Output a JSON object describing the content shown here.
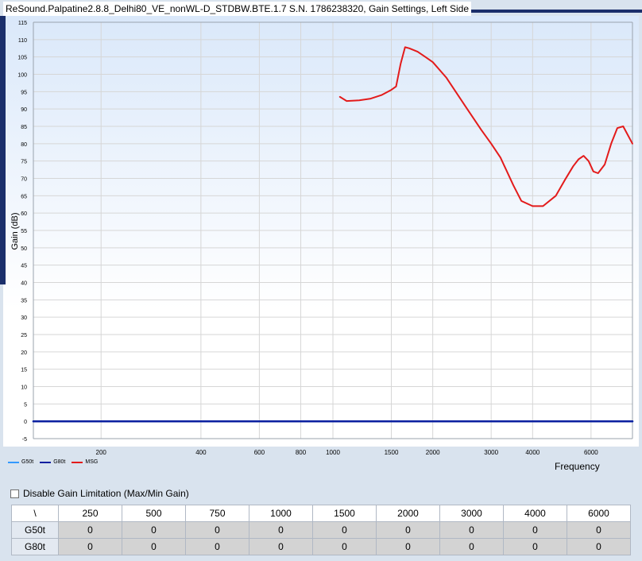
{
  "window": {
    "title": "ReSound.Palpatine2.8.8_Delhi80_VE_nonWL-D_STDBW.BTE.1.7 S.N. 1786238320, Gain Settings, Left Side"
  },
  "chart_data": {
    "type": "line",
    "title": "",
    "xlabel": "Frequency",
    "ylabel": "Gain (dB)",
    "x_scale": "log",
    "xlim": [
      125,
      8000
    ],
    "ylim": [
      -5,
      115
    ],
    "grid": true,
    "legend_position": "bottom-left",
    "x_ticks": [
      200,
      400,
      600,
      800,
      1000,
      1500,
      2000,
      3000,
      4000,
      6000
    ],
    "y_ticks": [
      -5,
      0,
      5,
      10,
      15,
      20,
      25,
      30,
      35,
      40,
      45,
      50,
      55,
      60,
      65,
      70,
      75,
      80,
      85,
      90,
      95,
      100,
      105,
      110,
      115
    ],
    "series": [
      {
        "name": "G50t",
        "color": "#3399ff",
        "x": [
          125,
          8000
        ],
        "y": [
          0,
          0
        ]
      },
      {
        "name": "G80t",
        "color": "#0a1fa0",
        "x": [
          125,
          8000
        ],
        "y": [
          0,
          0
        ]
      },
      {
        "name": "MSG",
        "color": "#e31b1b",
        "x": [
          1050,
          1100,
          1200,
          1300,
          1400,
          1500,
          1550,
          1600,
          1650,
          1700,
          1800,
          1900,
          2000,
          2200,
          2500,
          2800,
          3000,
          3200,
          3500,
          3700,
          4000,
          4300,
          4700,
          5000,
          5300,
          5500,
          5700,
          5900,
          6100,
          6300,
          6600,
          6900,
          7200,
          7500,
          8000
        ],
        "y": [
          93.5,
          92.3,
          92.5,
          93,
          94,
          95.5,
          96.5,
          103,
          107.8,
          107.5,
          106.5,
          105,
          103.5,
          99,
          91,
          84,
          80,
          76,
          68,
          63.5,
          62,
          62,
          65,
          69.5,
          73.5,
          75.5,
          76.5,
          75,
          72,
          71.5,
          74,
          80,
          84.5,
          85,
          80
        ]
      }
    ]
  },
  "gain_limitation": {
    "checkbox_label": "Disable Gain Limitation (Max/Min Gain)",
    "checked": false
  },
  "gain_table": {
    "corner": "\\",
    "frequencies": [
      "250",
      "500",
      "750",
      "1000",
      "1500",
      "2000",
      "3000",
      "4000",
      "6000"
    ],
    "rows": [
      {
        "label": "G50t",
        "values": [
          "0",
          "0",
          "0",
          "0",
          "0",
          "0",
          "0",
          "0",
          "0"
        ]
      },
      {
        "label": "G80t",
        "values": [
          "0",
          "0",
          "0",
          "0",
          "0",
          "0",
          "0",
          "0",
          "0"
        ]
      }
    ]
  }
}
